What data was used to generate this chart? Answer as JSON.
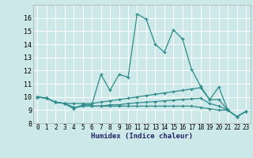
{
  "xlabel": "Humidex (Indice chaleur)",
  "bg_color": "#cde8e8",
  "grid_color": "#ffffff",
  "line_color": "#2e8b8b",
  "xlim": [
    -0.5,
    23.5
  ],
  "ylim": [
    8,
    17
  ],
  "xticks": [
    0,
    1,
    2,
    3,
    4,
    5,
    6,
    7,
    8,
    9,
    10,
    11,
    12,
    13,
    14,
    15,
    16,
    17,
    18,
    19,
    20,
    21,
    22,
    23
  ],
  "yticks": [
    8,
    9,
    10,
    11,
    12,
    13,
    14,
    15,
    16
  ],
  "series": [
    {
      "x": [
        0,
        1,
        2,
        3,
        4,
        5,
        6,
        7,
        8,
        9,
        10,
        11,
        12,
        13,
        14,
        15,
        16,
        17,
        18,
        19,
        20,
        21
      ],
      "y": [
        10.0,
        9.9,
        9.6,
        9.5,
        9.1,
        9.4,
        9.4,
        11.7,
        10.5,
        11.7,
        11.5,
        16.3,
        15.9,
        14.0,
        13.4,
        15.1,
        14.4,
        12.1,
        10.8,
        9.8,
        10.75,
        9.0
      ]
    },
    {
      "x": [
        0,
        1,
        2,
        3,
        4,
        5,
        6,
        7,
        8,
        9,
        10,
        11,
        12,
        13,
        14,
        15,
        16,
        17,
        18,
        19,
        20,
        21,
        22,
        23
      ],
      "y": [
        10.0,
        9.9,
        9.6,
        9.5,
        9.5,
        9.5,
        9.5,
        9.6,
        9.7,
        9.8,
        9.9,
        10.0,
        10.1,
        10.2,
        10.3,
        10.4,
        10.5,
        10.6,
        10.7,
        9.8,
        9.8,
        9.0,
        8.5,
        8.9
      ]
    },
    {
      "x": [
        0,
        1,
        2,
        3,
        4,
        5,
        6,
        7,
        8,
        9,
        10,
        11,
        12,
        13,
        14,
        15,
        16,
        17,
        18,
        19,
        20,
        21,
        22,
        23
      ],
      "y": [
        10.0,
        9.9,
        9.6,
        9.5,
        9.2,
        9.3,
        9.3,
        9.3,
        9.4,
        9.4,
        9.5,
        9.55,
        9.6,
        9.65,
        9.7,
        9.75,
        9.8,
        9.85,
        9.9,
        9.5,
        9.3,
        9.0,
        8.5,
        8.9
      ]
    },
    {
      "x": [
        0,
        1,
        2,
        3,
        4,
        5,
        6,
        7,
        8,
        9,
        10,
        11,
        12,
        13,
        14,
        15,
        16,
        17,
        18,
        19,
        20,
        21,
        22,
        23
      ],
      "y": [
        10.0,
        9.9,
        9.6,
        9.5,
        9.2,
        9.3,
        9.3,
        9.3,
        9.3,
        9.3,
        9.3,
        9.3,
        9.3,
        9.3,
        9.3,
        9.3,
        9.3,
        9.3,
        9.2,
        9.1,
        9.0,
        9.0,
        8.5,
        8.9
      ]
    }
  ]
}
